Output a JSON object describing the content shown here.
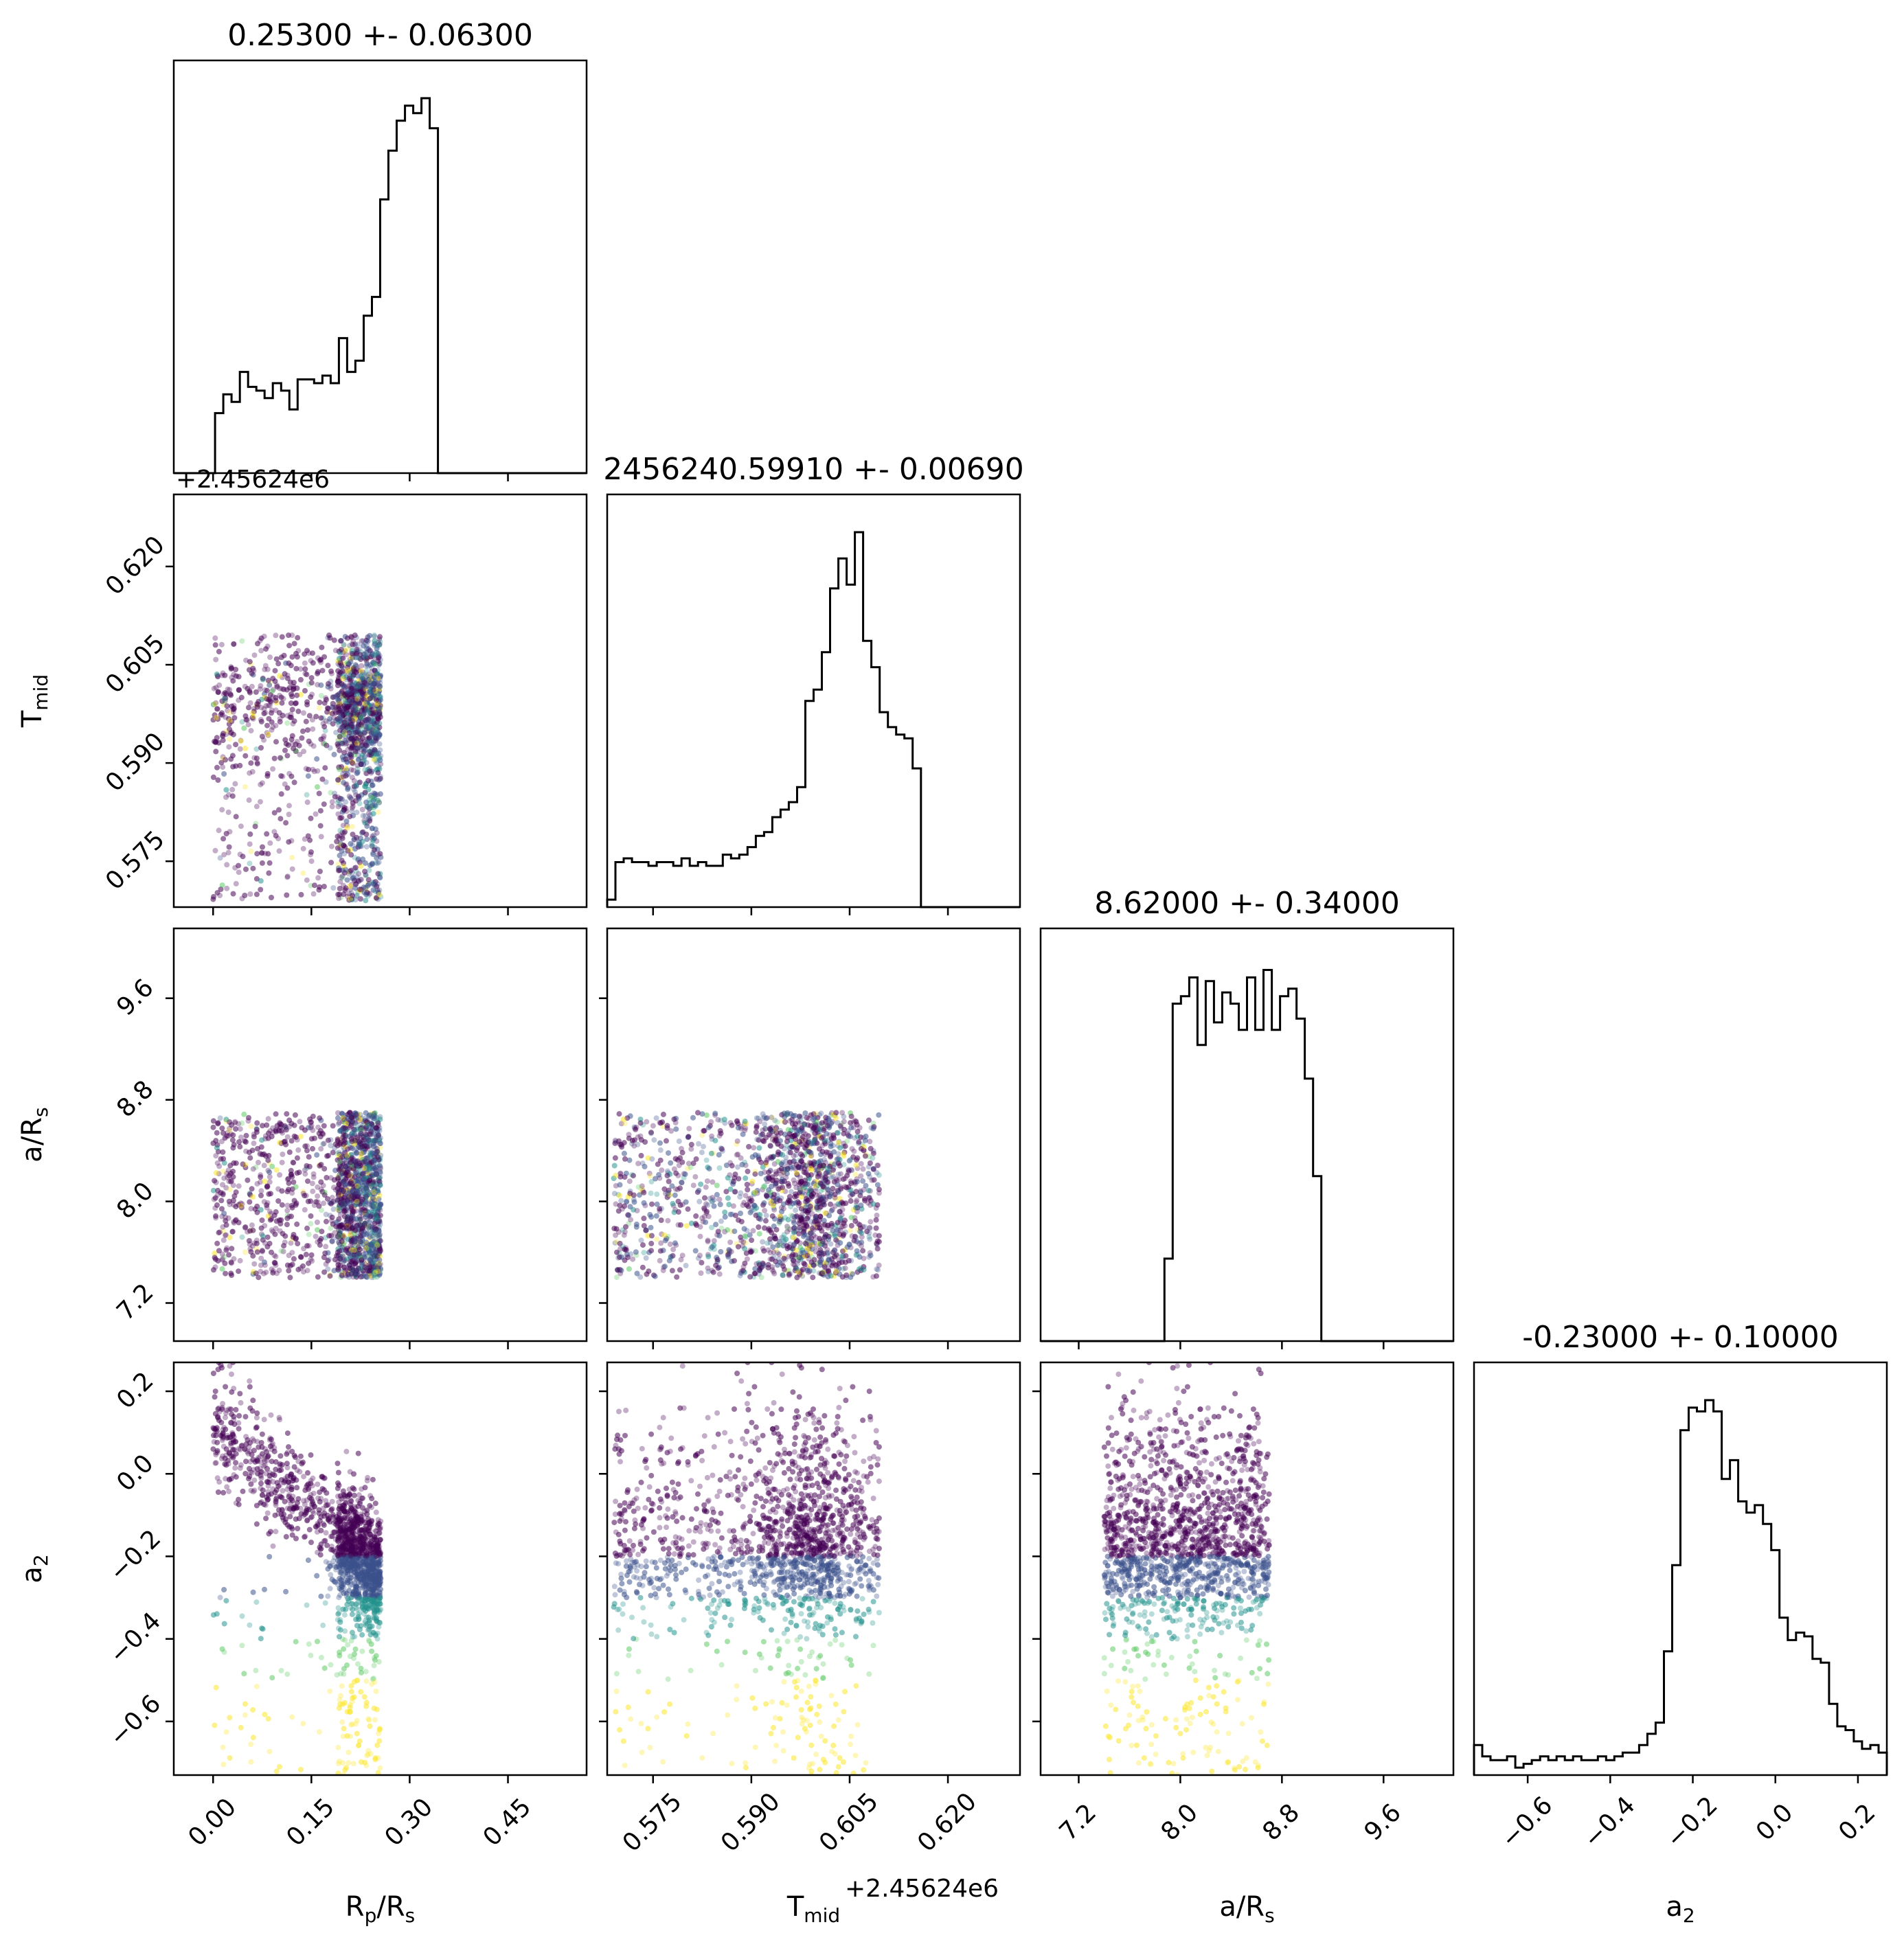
{
  "chart_data": {
    "type": "corner",
    "parameters": [
      {
        "label": "R$_p$/R$_s$",
        "label_base": "R",
        "label_sub": "p",
        "label_tail": "/R",
        "label_sub2": "s",
        "title": "0.25300 +- 0.06300",
        "range": [
          -0.06,
          0.57
        ],
        "ticks": [
          "0.00",
          "0.15",
          "0.30",
          "0.45"
        ],
        "tick_values": [
          0.0,
          0.15,
          0.3,
          0.45
        ],
        "offset_text": "",
        "samples_range": [
          0.0,
          0.256
        ],
        "hist_values": [
          0.0,
          0.0,
          0.0,
          0.0,
          0.0,
          0.16,
          0.21,
          0.19,
          0.27,
          0.23,
          0.22,
          0.2,
          0.24,
          0.22,
          0.17,
          0.25,
          0.25,
          0.24,
          0.26,
          0.24,
          0.36,
          0.27,
          0.3,
          0.42,
          0.47,
          0.73,
          0.86,
          0.94,
          0.98,
          0.96,
          1.0,
          0.92,
          0.0,
          0.0,
          0.0,
          0.0,
          0.0,
          0.0,
          0.0,
          0.0,
          0.0,
          0.0,
          0.0,
          0.0,
          0.0,
          0.0,
          0.0,
          0.0,
          0.0,
          0.0
        ]
      },
      {
        "label": "T$_{mid}$",
        "label_base": "T",
        "label_sub": "mid",
        "label_tail": "",
        "label_sub2": "",
        "title": "2456240.59910 +- 0.00690",
        "range": [
          0.568,
          0.631
        ],
        "ticks": [
          "0.575",
          "0.590",
          "0.605",
          "0.620"
        ],
        "tick_values": [
          0.575,
          0.59,
          0.605,
          0.62
        ],
        "offset_text": "+2.45624e6",
        "samples_range": [
          0.569,
          0.6095
        ],
        "hist_values": [
          0.02,
          0.12,
          0.13,
          0.12,
          0.12,
          0.11,
          0.12,
          0.12,
          0.11,
          0.13,
          0.11,
          0.12,
          0.11,
          0.11,
          0.14,
          0.13,
          0.14,
          0.16,
          0.19,
          0.2,
          0.24,
          0.26,
          0.28,
          0.32,
          0.55,
          0.58,
          0.68,
          0.85,
          0.93,
          0.86,
          1.0,
          0.71,
          0.64,
          0.52,
          0.48,
          0.46,
          0.45,
          0.37,
          0.0,
          0.0,
          0.0,
          0.0,
          0.0,
          0.0,
          0.0,
          0.0,
          0.0,
          0.0,
          0.0,
          0.0
        ]
      },
      {
        "label": "a/R$_s$",
        "label_base": "a/R",
        "label_sub": "s",
        "label_tail": "",
        "label_sub2": "",
        "title": "8.62000 +- 0.34000",
        "range": [
          6.9,
          10.15
        ],
        "ticks": [
          "7.2",
          "8.0",
          "8.8",
          "9.6"
        ],
        "tick_values": [
          7.2,
          8.0,
          8.8,
          9.6
        ],
        "offset_text": "",
        "samples_range": [
          7.4,
          8.7
        ],
        "hist_values": [
          0.0,
          0.0,
          0.0,
          0.0,
          0.0,
          0.0,
          0.0,
          0.0,
          0.0,
          0.0,
          0.0,
          0.0,
          0.0,
          0.0,
          0.0,
          0.22,
          0.9,
          0.92,
          0.97,
          0.79,
          0.96,
          0.85,
          0.93,
          0.9,
          0.83,
          0.97,
          0.83,
          0.99,
          0.83,
          0.92,
          0.94,
          0.86,
          0.7,
          0.44,
          0.0,
          0.0,
          0.0,
          0.0,
          0.0,
          0.0,
          0.0,
          0.0,
          0.0,
          0.0,
          0.0,
          0.0,
          0.0,
          0.0,
          0.0,
          0.0
        ]
      },
      {
        "label": "$a_2$",
        "label_base": "a",
        "label_sub": "2",
        "label_tail": "",
        "label_sub2": "",
        "title": "-0.23000 +- 0.10000",
        "range": [
          -0.73,
          0.27
        ],
        "ticks": [
          "−0.6",
          "−0.4",
          "−0.2",
          "0.0",
          "0.2"
        ],
        "tick_values": [
          -0.6,
          -0.4,
          -0.2,
          0.0,
          0.2
        ],
        "offset_text": "",
        "samples_range": [
          -0.73,
          0.27
        ],
        "hist_values": [
          0.08,
          0.05,
          0.04,
          0.04,
          0.05,
          0.02,
          0.03,
          0.04,
          0.05,
          0.04,
          0.05,
          0.04,
          0.05,
          0.04,
          0.04,
          0.05,
          0.04,
          0.05,
          0.06,
          0.06,
          0.08,
          0.11,
          0.14,
          0.33,
          0.56,
          0.92,
          0.98,
          0.97,
          1.0,
          0.97,
          0.79,
          0.84,
          0.73,
          0.7,
          0.72,
          0.67,
          0.6,
          0.42,
          0.36,
          0.38,
          0.37,
          0.31,
          0.3,
          0.19,
          0.13,
          0.12,
          0.09,
          0.07,
          0.08,
          0.06
        ]
      }
    ],
    "scatter_colormap": [
      "#440154",
      "#3b528b",
      "#21918c",
      "#5ec962",
      "#fde725"
    ],
    "contour_color": "#440154",
    "histogram_color": "#000000"
  }
}
